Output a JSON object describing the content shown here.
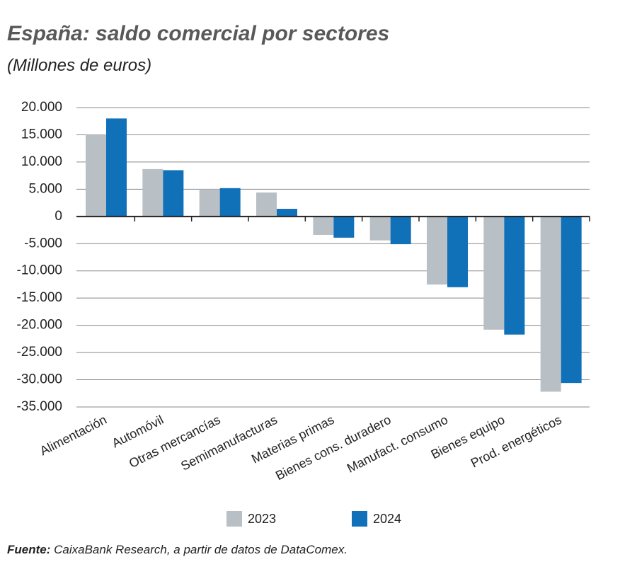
{
  "chart_data": {
    "type": "bar",
    "title": "España: saldo comercial por sectores",
    "subtitle": "(Millones de euros)",
    "source_label": "Fuente:",
    "source": "CaixaBank Research, a partir de datos de DataComex.",
    "categories": [
      "Alimentación",
      "Automóvil",
      "Otras mercancías",
      "Semimanufacturas",
      "Materias primas",
      "Bienes cons. duradero",
      "Manufact. consumo",
      "Bienes equipo",
      "Prod. energéticos"
    ],
    "series": [
      {
        "name": "2023",
        "color": "#b9c0c5",
        "values": [
          15000,
          8700,
          5000,
          4400,
          -3400,
          -4400,
          -12500,
          -20800,
          -32200
        ]
      },
      {
        "name": "2024",
        "color": "#1070b8",
        "values": [
          18000,
          8500,
          5200,
          1400,
          -3900,
          -5100,
          -13000,
          -21700,
          -30600
        ]
      }
    ],
    "ylim": [
      -35000,
      20000
    ],
    "yticks": [
      {
        "value": 20000,
        "label": "20.000"
      },
      {
        "value": 15000,
        "label": "15.000"
      },
      {
        "value": 10000,
        "label": "10.000"
      },
      {
        "value": 5000,
        "label": "5.000"
      },
      0,
      {
        "value": -5000,
        "label": "-5.000"
      },
      {
        "value": -10000,
        "label": "-10.000"
      },
      {
        "value": -15000,
        "label": "-15.000"
      },
      {
        "value": -20000,
        "label": "-20.000"
      },
      {
        "value": -25000,
        "label": "-25.000"
      },
      {
        "value": -30000,
        "label": "-30.000"
      },
      {
        "value": -35000,
        "label": "-35.000"
      }
    ],
    "grid": true
  }
}
